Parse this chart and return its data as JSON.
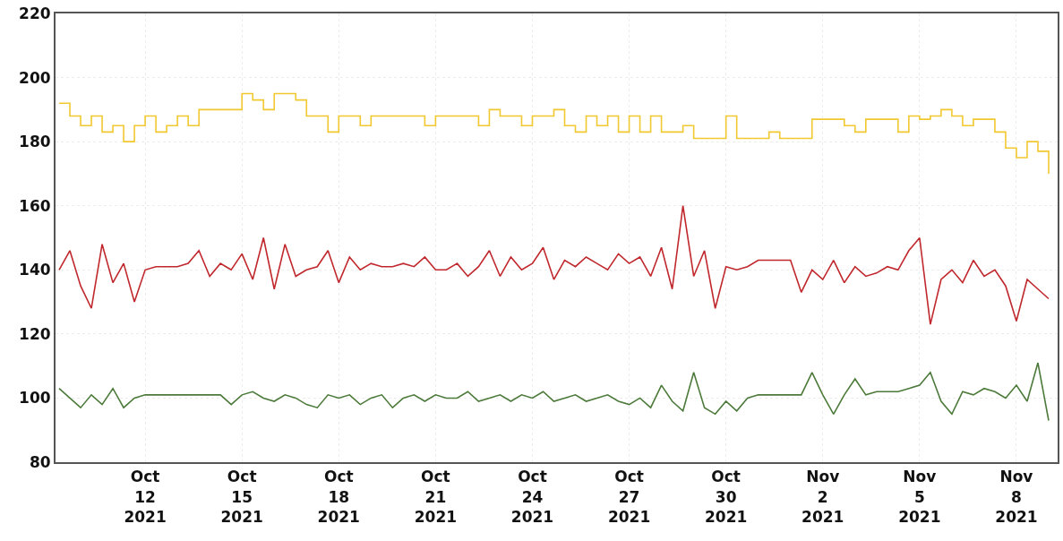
{
  "chart_data": {
    "type": "line",
    "x": [
      "2021-10-09T08:00",
      "2021-10-09T16:00",
      "2021-10-10T00:00",
      "2021-10-10T08:00",
      "2021-10-10T16:00",
      "2021-10-11T00:00",
      "2021-10-11T08:00",
      "2021-10-11T16:00",
      "2021-10-12T00:00",
      "2021-10-12T08:00",
      "2021-10-12T16:00",
      "2021-10-13T00:00",
      "2021-10-13T08:00",
      "2021-10-13T16:00",
      "2021-10-14T00:00",
      "2021-10-14T08:00",
      "2021-10-14T16:00",
      "2021-10-15T00:00",
      "2021-10-15T08:00",
      "2021-10-15T16:00",
      "2021-10-16T00:00",
      "2021-10-16T08:00",
      "2021-10-16T16:00",
      "2021-10-17T00:00",
      "2021-10-17T08:00",
      "2021-10-17T16:00",
      "2021-10-18T00:00",
      "2021-10-18T08:00",
      "2021-10-18T16:00",
      "2021-10-19T00:00",
      "2021-10-19T08:00",
      "2021-10-19T16:00",
      "2021-10-20T00:00",
      "2021-10-20T08:00",
      "2021-10-20T16:00",
      "2021-10-21T00:00",
      "2021-10-21T08:00",
      "2021-10-21T16:00",
      "2021-10-22T00:00",
      "2021-10-22T08:00",
      "2021-10-22T16:00",
      "2021-10-23T00:00",
      "2021-10-23T08:00",
      "2021-10-23T16:00",
      "2021-10-24T00:00",
      "2021-10-24T08:00",
      "2021-10-24T16:00",
      "2021-10-25T00:00",
      "2021-10-25T08:00",
      "2021-10-25T16:00",
      "2021-10-26T00:00",
      "2021-10-26T08:00",
      "2021-10-26T16:00",
      "2021-10-27T00:00",
      "2021-10-27T08:00",
      "2021-10-27T16:00",
      "2021-10-28T00:00",
      "2021-10-28T08:00",
      "2021-10-28T16:00",
      "2021-10-29T00:00",
      "2021-10-29T08:00",
      "2021-10-29T16:00",
      "2021-10-30T00:00",
      "2021-10-30T08:00",
      "2021-10-30T16:00",
      "2021-10-31T00:00",
      "2021-10-31T08:00",
      "2021-10-31T16:00",
      "2021-11-01T00:00",
      "2021-11-01T08:00",
      "2021-11-01T16:00",
      "2021-11-02T00:00",
      "2021-11-02T08:00",
      "2021-11-02T16:00",
      "2021-11-03T00:00",
      "2021-11-03T08:00",
      "2021-11-03T16:00",
      "2021-11-04T00:00",
      "2021-11-04T08:00",
      "2021-11-04T16:00",
      "2021-11-05T00:00",
      "2021-11-05T08:00",
      "2021-11-05T16:00",
      "2021-11-06T00:00",
      "2021-11-06T08:00",
      "2021-11-06T16:00",
      "2021-11-07T00:00",
      "2021-11-07T08:00",
      "2021-11-07T16:00",
      "2021-11-08T00:00",
      "2021-11-08T08:00",
      "2021-11-08T16:00",
      "2021-11-09T00:00"
    ],
    "xlim": [
      "2021-10-09T05:20",
      "2021-11-09T06:40"
    ],
    "xticks": [
      {
        "value": "2021-10-12",
        "label": "Oct\n12\n2021"
      },
      {
        "value": "2021-10-15",
        "label": "Oct\n15\n2021"
      },
      {
        "value": "2021-10-18",
        "label": "Oct\n18\n2021"
      },
      {
        "value": "2021-10-21",
        "label": "Oct\n21\n2021"
      },
      {
        "value": "2021-10-24",
        "label": "Oct\n24\n2021"
      },
      {
        "value": "2021-10-27",
        "label": "Oct\n27\n2021"
      },
      {
        "value": "2021-10-30",
        "label": "Oct\n30\n2021"
      },
      {
        "value": "2021-11-02",
        "label": "Nov\n2\n2021"
      },
      {
        "value": "2021-11-05",
        "label": "Nov\n5\n2021"
      },
      {
        "value": "2021-11-08",
        "label": "Nov\n8\n2021"
      }
    ],
    "ylim": [
      80,
      220
    ],
    "yticks": [
      80,
      100,
      120,
      140,
      160,
      180,
      200,
      220
    ],
    "grid": true,
    "legend": false,
    "marker": "none",
    "line_style": "solid",
    "series": [
      {
        "type": "step",
        "color": "#f2c830",
        "values": [
          192,
          188,
          185,
          188,
          183,
          185,
          180,
          185,
          188,
          183,
          185,
          188,
          185,
          190,
          190,
          190,
          190,
          195,
          193,
          190,
          195,
          195,
          193,
          188,
          188,
          183,
          188,
          188,
          185,
          188,
          188,
          188,
          188,
          188,
          185,
          188,
          188,
          188,
          188,
          185,
          190,
          188,
          188,
          185,
          188,
          188,
          190,
          185,
          183,
          188,
          185,
          188,
          183,
          188,
          183,
          188,
          183,
          183,
          185,
          181,
          181,
          181,
          188,
          181,
          181,
          181,
          183,
          181,
          181,
          181,
          187,
          187,
          187,
          185,
          183,
          187,
          187,
          187,
          183,
          188,
          187,
          188,
          190,
          188,
          185,
          187,
          187,
          183,
          178,
          175,
          180,
          177,
          170
        ]
      },
      {
        "color": "#c0282d",
        "values": [
          140,
          146,
          135,
          128,
          148,
          136,
          142,
          130,
          140,
          141,
          141,
          141,
          142,
          146,
          138,
          142,
          140,
          145,
          137,
          150,
          134,
          148,
          138,
          140,
          141,
          146,
          136,
          144,
          140,
          142,
          141,
          141,
          142,
          141,
          144,
          140,
          140,
          142,
          138,
          141,
          146,
          138,
          144,
          140,
          142,
          147,
          137,
          143,
          141,
          144,
          142,
          140,
          145,
          142,
          144,
          138,
          147,
          134,
          160,
          138,
          146,
          128,
          141,
          140,
          141,
          143,
          143,
          143,
          143,
          133,
          140,
          137,
          143,
          136,
          141,
          138,
          139,
          141,
          140,
          146,
          150,
          123,
          137,
          140,
          136,
          143,
          138,
          140,
          135,
          124,
          137,
          134,
          131
        ]
      },
      {
        "color": "#4c7a3a",
        "values": [
          103,
          100,
          97,
          101,
          98,
          103,
          97,
          100,
          101,
          101,
          101,
          101,
          101,
          101,
          101,
          101,
          98,
          101,
          102,
          100,
          99,
          101,
          100,
          98,
          97,
          101,
          100,
          101,
          98,
          100,
          101,
          97,
          100,
          101,
          99,
          101,
          100,
          100,
          102,
          99,
          100,
          101,
          99,
          101,
          100,
          102,
          99,
          100,
          101,
          99,
          100,
          101,
          99,
          98,
          100,
          97,
          104,
          99,
          96,
          108,
          97,
          95,
          99,
          96,
          100,
          101,
          101,
          101,
          101,
          101,
          108,
          101,
          95,
          101,
          106,
          101,
          102,
          102,
          102,
          103,
          104,
          108,
          99,
          95,
          102,
          101,
          103,
          102,
          100,
          104,
          99,
          111,
          93
        ]
      }
    ]
  }
}
